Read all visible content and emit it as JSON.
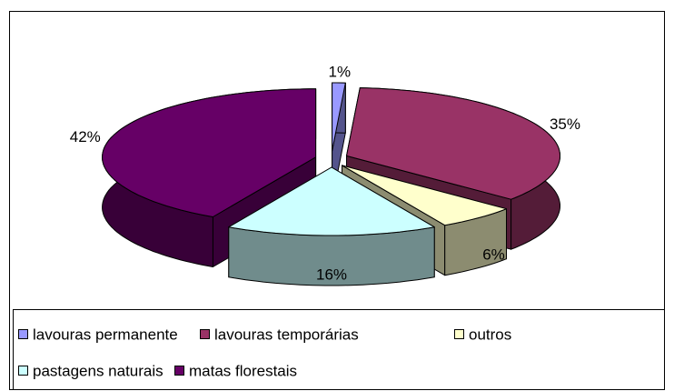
{
  "chart_data": {
    "type": "pie",
    "categories": [
      "lavouras permanente",
      "lavouras temporárias",
      "outros",
      "pastagens naturais",
      "matas florestais"
    ],
    "values": [
      1,
      35,
      6,
      16,
      42
    ],
    "value_labels": [
      "1%",
      "35%",
      "6%",
      "16%",
      "42%"
    ],
    "colors": [
      "#9999ff",
      "#993366",
      "#ffffcc",
      "#ccffff",
      "#660066"
    ]
  }
}
